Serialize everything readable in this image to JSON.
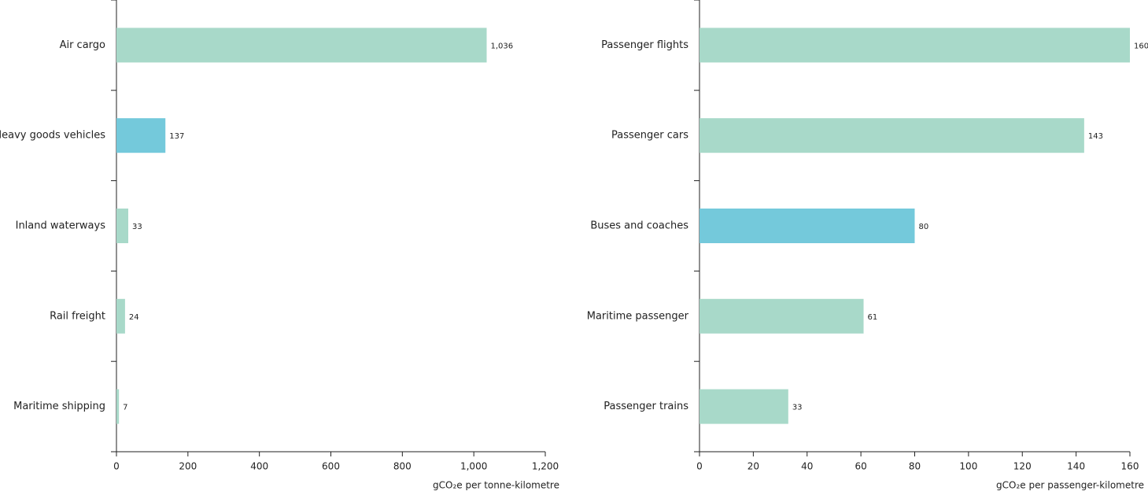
{
  "chart_data": [
    {
      "type": "hbar",
      "categories": [
        "Air cargo",
        "Heavy goods vehicles",
        "Inland waterways",
        "Rail freight",
        "Maritime shipping"
      ],
      "values": [
        1036,
        137,
        33,
        24,
        7
      ],
      "value_labels": [
        "1,036",
        "137",
        "33",
        "24",
        "7"
      ],
      "colors": [
        "#a8d9c9",
        "#74c9db",
        "#a8d9c9",
        "#a8d9c9",
        "#a8d9c9"
      ],
      "xlim": [
        0,
        1200
      ],
      "xticks": [
        0,
        200,
        400,
        600,
        800,
        {
          "value": 1000,
          "label": "1,000"
        },
        {
          "value": 1200,
          "label": "1,200"
        }
      ],
      "x_label": "gCO₂e per tonne-kilometre"
    },
    {
      "type": "hbar",
      "categories": [
        "Passenger flights",
        "Passenger cars",
        "Buses and coaches",
        "Maritime passenger",
        "Passenger trains"
      ],
      "values": [
        160,
        143,
        80,
        61,
        33
      ],
      "colors": [
        "#a8d9c9",
        "#a8d9c9",
        "#74c9db",
        "#a8d9c9",
        "#a8d9c9"
      ],
      "xlim": [
        0,
        160
      ],
      "xticks": [
        0,
        20,
        40,
        60,
        80,
        100,
        120,
        140,
        160
      ],
      "x_label": "gCO₂e per passenger-kilometre"
    }
  ]
}
